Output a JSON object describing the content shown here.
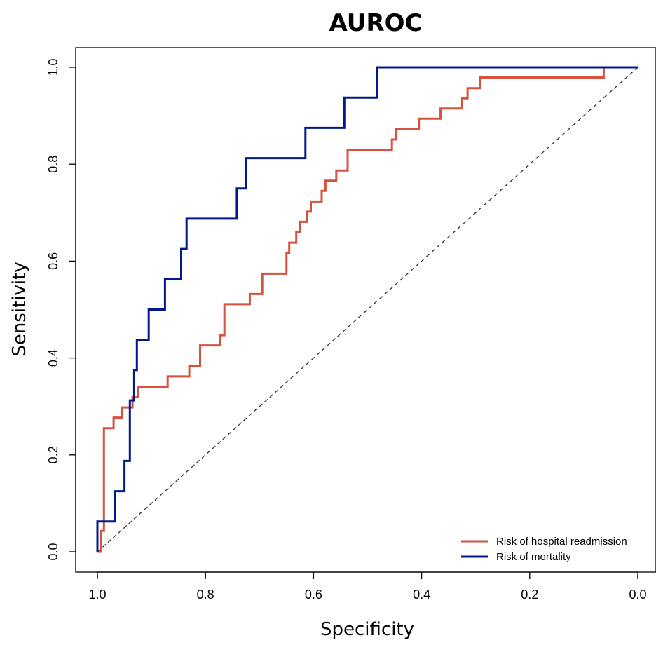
{
  "chart_data": {
    "type": "line",
    "title": "AUROC",
    "xlabel": "Specificity",
    "ylabel": "Sensitivity",
    "xlim": [
      1.0,
      0.0
    ],
    "ylim": [
      0.0,
      1.0
    ],
    "x_ticks": [
      "1.0",
      "0.8",
      "0.6",
      "0.4",
      "0.2",
      "0.0"
    ],
    "x_tick_values": [
      1.0,
      0.8,
      0.6,
      0.4,
      0.2,
      0.0
    ],
    "y_ticks": [
      "0.0",
      "0.2",
      "0.4",
      "0.6",
      "0.8",
      "1.0"
    ],
    "y_tick_values": [
      0.0,
      0.2,
      0.4,
      0.6,
      0.8,
      1.0
    ],
    "grid": false,
    "legend_position": "bottom-right",
    "reference_line": {
      "from": [
        1.0,
        0.0
      ],
      "to": [
        0.0,
        1.0
      ],
      "style": "dashed",
      "color": "#333333"
    },
    "series": [
      {
        "name": "Risk of hospital readmission",
        "color": "#d6523e",
        "points": [
          [
            1.0,
            0.0
          ],
          [
            0.993,
            0.0
          ],
          [
            0.993,
            0.043
          ],
          [
            0.988,
            0.043
          ],
          [
            0.988,
            0.255
          ],
          [
            0.97,
            0.255
          ],
          [
            0.97,
            0.277
          ],
          [
            0.955,
            0.277
          ],
          [
            0.955,
            0.298
          ],
          [
            0.935,
            0.298
          ],
          [
            0.935,
            0.319
          ],
          [
            0.925,
            0.319
          ],
          [
            0.925,
            0.34
          ],
          [
            0.87,
            0.34
          ],
          [
            0.87,
            0.362
          ],
          [
            0.83,
            0.362
          ],
          [
            0.83,
            0.383
          ],
          [
            0.81,
            0.383
          ],
          [
            0.81,
            0.426
          ],
          [
            0.773,
            0.426
          ],
          [
            0.773,
            0.447
          ],
          [
            0.765,
            0.447
          ],
          [
            0.765,
            0.511
          ],
          [
            0.718,
            0.511
          ],
          [
            0.718,
            0.532
          ],
          [
            0.695,
            0.532
          ],
          [
            0.695,
            0.574
          ],
          [
            0.65,
            0.574
          ],
          [
            0.65,
            0.617
          ],
          [
            0.645,
            0.617
          ],
          [
            0.645,
            0.638
          ],
          [
            0.632,
            0.638
          ],
          [
            0.632,
            0.66
          ],
          [
            0.625,
            0.66
          ],
          [
            0.625,
            0.681
          ],
          [
            0.612,
            0.681
          ],
          [
            0.612,
            0.702
          ],
          [
            0.605,
            0.702
          ],
          [
            0.605,
            0.723
          ],
          [
            0.585,
            0.723
          ],
          [
            0.585,
            0.745
          ],
          [
            0.578,
            0.745
          ],
          [
            0.578,
            0.766
          ],
          [
            0.558,
            0.766
          ],
          [
            0.558,
            0.787
          ],
          [
            0.537,
            0.787
          ],
          [
            0.537,
            0.83
          ],
          [
            0.455,
            0.83
          ],
          [
            0.455,
            0.851
          ],
          [
            0.448,
            0.851
          ],
          [
            0.448,
            0.872
          ],
          [
            0.405,
            0.872
          ],
          [
            0.405,
            0.894
          ],
          [
            0.365,
            0.894
          ],
          [
            0.365,
            0.915
          ],
          [
            0.325,
            0.915
          ],
          [
            0.325,
            0.936
          ],
          [
            0.315,
            0.936
          ],
          [
            0.315,
            0.957
          ],
          [
            0.292,
            0.957
          ],
          [
            0.292,
            0.979
          ],
          [
            0.063,
            0.979
          ],
          [
            0.063,
            1.0
          ],
          [
            0.0,
            1.0
          ]
        ]
      },
      {
        "name": "Risk of mortality",
        "color": "#001a8c",
        "points": [
          [
            1.0,
            0.0
          ],
          [
            1.0,
            0.0625
          ],
          [
            0.968,
            0.0625
          ],
          [
            0.968,
            0.125
          ],
          [
            0.95,
            0.125
          ],
          [
            0.95,
            0.1875
          ],
          [
            0.94,
            0.1875
          ],
          [
            0.94,
            0.3125
          ],
          [
            0.932,
            0.3125
          ],
          [
            0.932,
            0.375
          ],
          [
            0.927,
            0.375
          ],
          [
            0.927,
            0.4375
          ],
          [
            0.905,
            0.4375
          ],
          [
            0.905,
            0.5
          ],
          [
            0.875,
            0.5
          ],
          [
            0.875,
            0.5625
          ],
          [
            0.845,
            0.5625
          ],
          [
            0.845,
            0.625
          ],
          [
            0.835,
            0.625
          ],
          [
            0.835,
            0.6875
          ],
          [
            0.742,
            0.6875
          ],
          [
            0.742,
            0.75
          ],
          [
            0.725,
            0.75
          ],
          [
            0.725,
            0.8125
          ],
          [
            0.615,
            0.8125
          ],
          [
            0.615,
            0.875
          ],
          [
            0.543,
            0.875
          ],
          [
            0.543,
            0.9375
          ],
          [
            0.483,
            0.9375
          ],
          [
            0.483,
            1.0
          ],
          [
            0.0,
            1.0
          ]
        ]
      }
    ]
  }
}
